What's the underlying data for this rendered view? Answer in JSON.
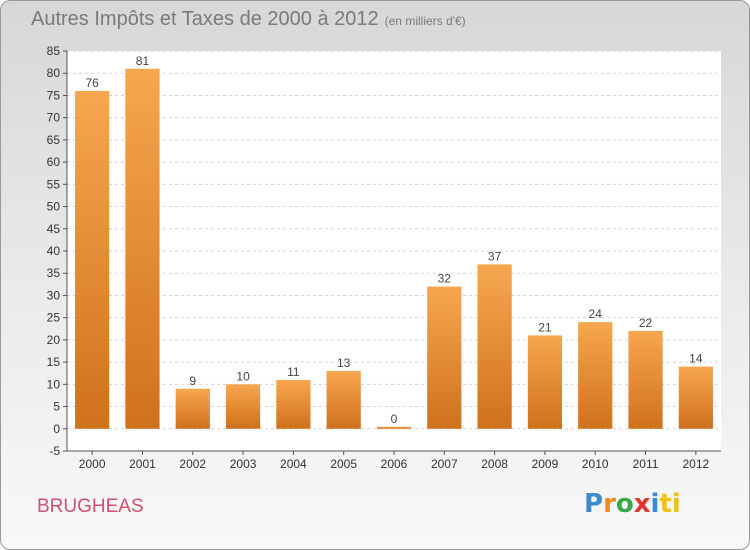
{
  "title": "Autres Impôts et Taxes de 2000 à 2012",
  "unit_label": "(en milliers d'€)",
  "commune": "BRUGHEAS",
  "logo": {
    "text": "Proxiti",
    "letters": [
      "P",
      "r",
      "o",
      "x",
      "i",
      "ti"
    ]
  },
  "colors": {
    "bar_light": "#f7a650",
    "bar_dark": "#d0711c",
    "title": "#7a7a7a",
    "commune": "#d14f73"
  },
  "chart_data": {
    "type": "bar",
    "categories": [
      "2000",
      "2001",
      "2002",
      "2003",
      "2004",
      "2005",
      "2006",
      "2007",
      "2008",
      "2009",
      "2010",
      "2011",
      "2012"
    ],
    "values": [
      76,
      81,
      9,
      10,
      11,
      13,
      0,
      32,
      37,
      21,
      24,
      22,
      14
    ],
    "ylim": [
      -5,
      85
    ],
    "yticks": [
      -5,
      0,
      5,
      10,
      15,
      20,
      25,
      30,
      35,
      40,
      45,
      50,
      55,
      60,
      65,
      70,
      75,
      80,
      85
    ],
    "grid": "horizontal",
    "xlabel": "",
    "ylabel": ""
  }
}
